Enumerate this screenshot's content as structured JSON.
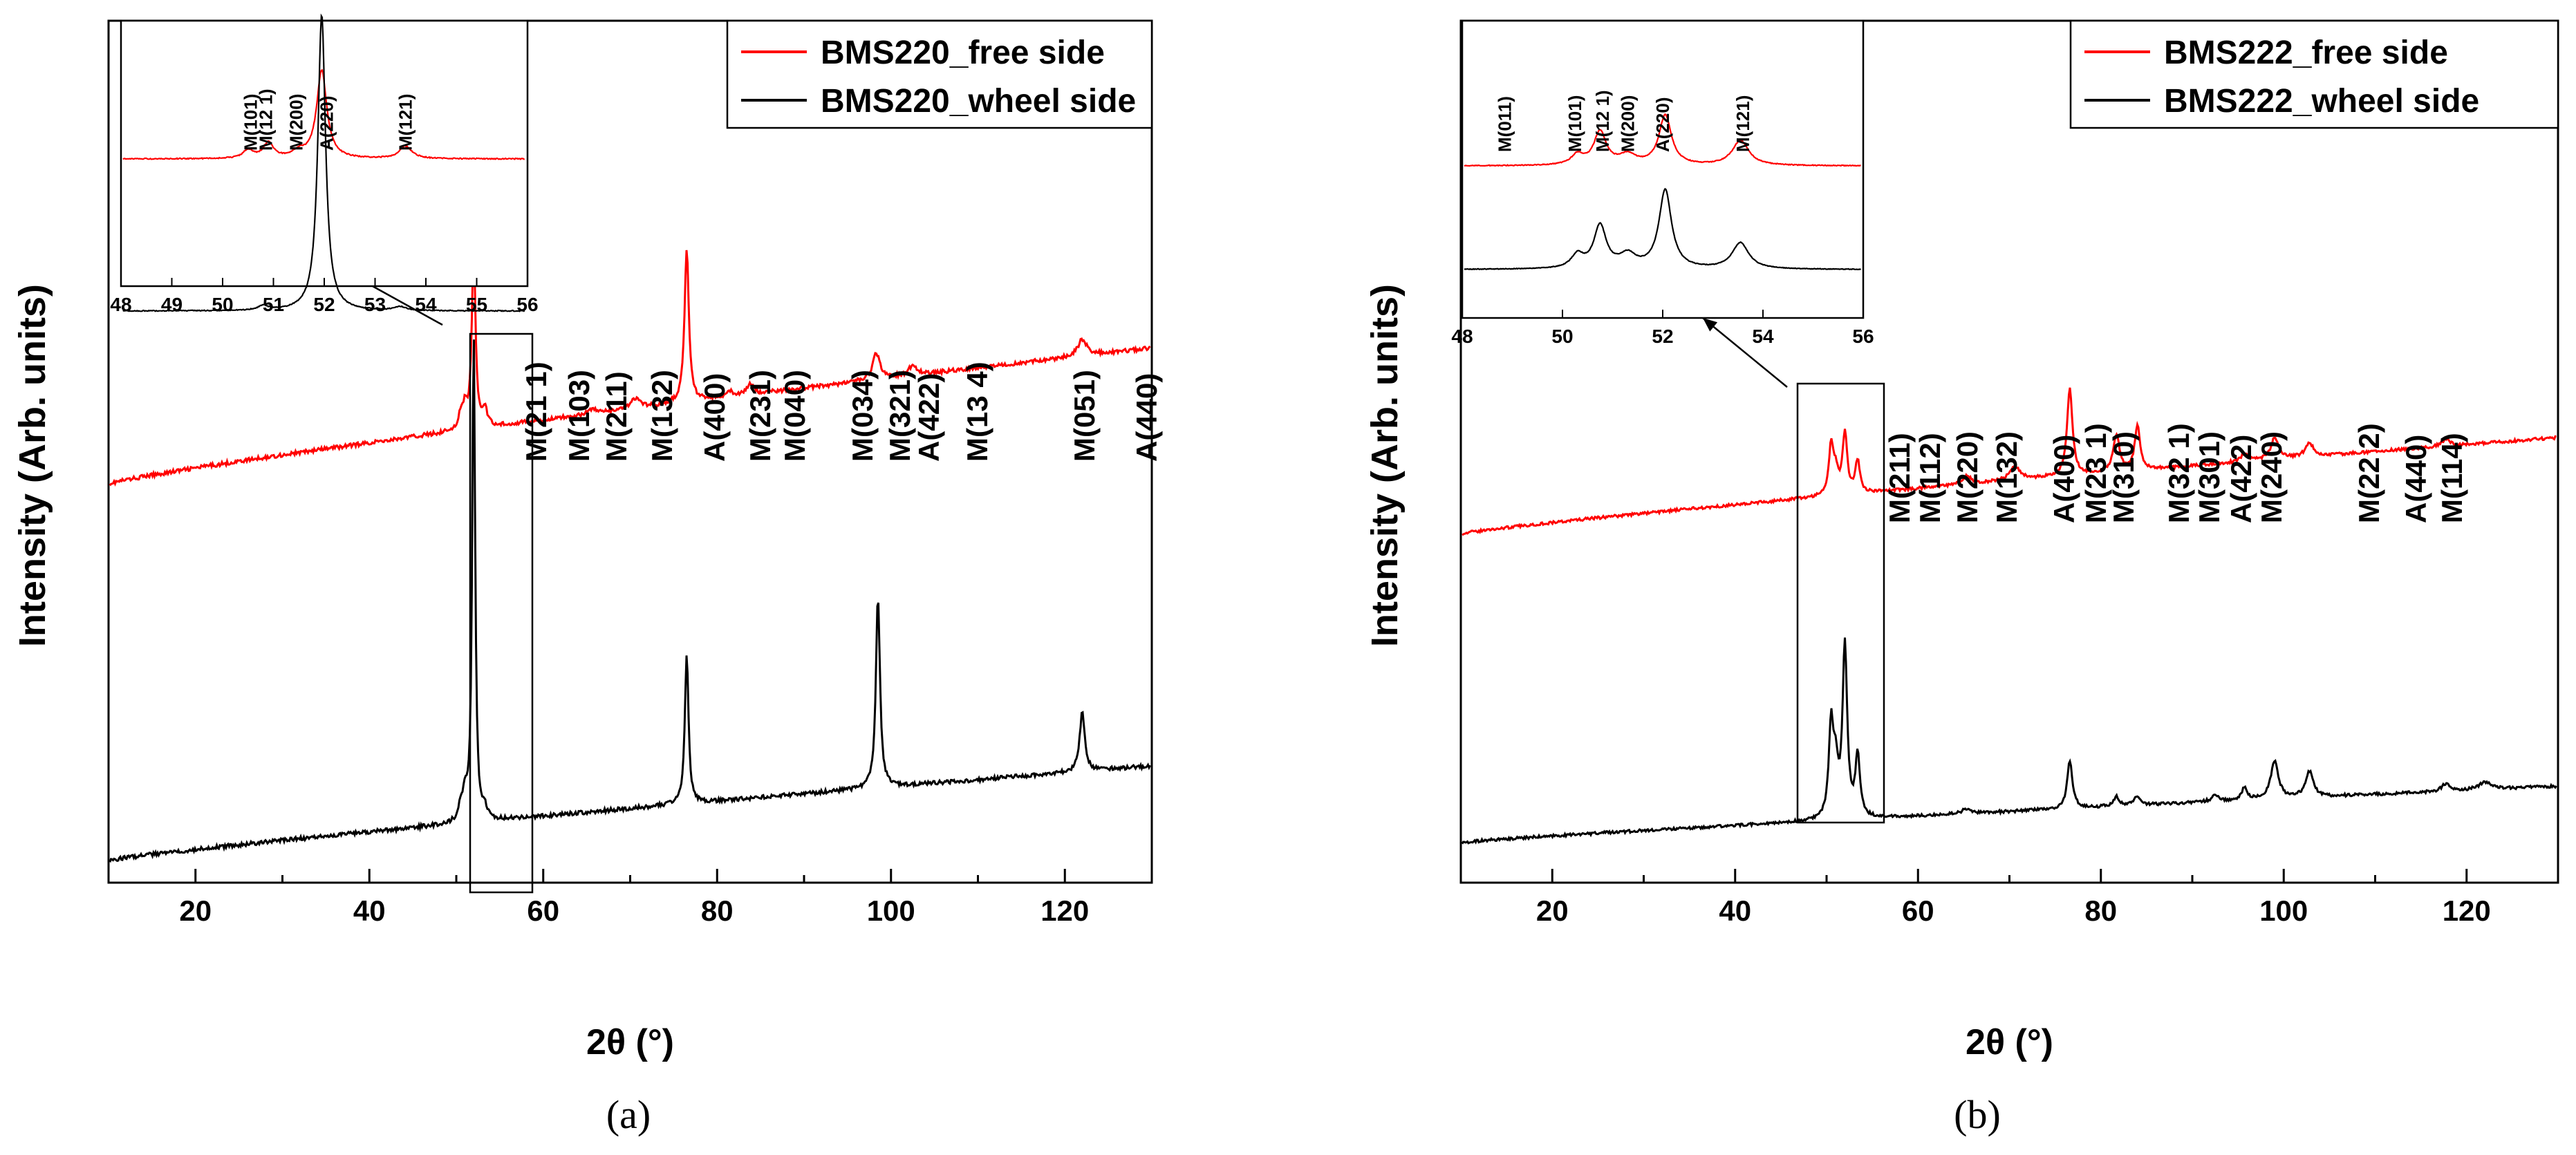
{
  "chart_data": [
    {
      "type": "line",
      "panel_label": "(a)",
      "xlabel": "2θ (°)",
      "ylabel": "Intensity (Arb. units)",
      "xlim": [
        10,
        130
      ],
      "xticks": [
        20,
        40,
        60,
        80,
        100,
        120
      ],
      "legend": "top-right",
      "series": [
        {
          "name": "BMS220_free side",
          "color": "#ff0000",
          "start": 0.16,
          "end": 0.57,
          "peaks": [
            [
              50.5,
              0.04,
              0.3
            ],
            [
              51.0,
              0.06,
              0.3
            ],
            [
              52.0,
              0.55,
              0.25
            ],
            [
              53.3,
              0.05,
              0.3
            ],
            [
              65.7,
              0.015,
              0.6
            ],
            [
              70.6,
              0.03,
              0.6
            ],
            [
              76.5,
              0.46,
              0.3
            ],
            [
              81.4,
              0.02,
              0.4
            ],
            [
              83.8,
              0.035,
              0.4
            ],
            [
              98.3,
              0.08,
              0.5
            ],
            [
              102.5,
              0.03,
              0.6
            ],
            [
              122.0,
              0.05,
              0.6
            ]
          ]
        },
        {
          "name": "BMS220_wheel side",
          "color": "#000000",
          "start": 0.0,
          "end": 0.285,
          "peaks": [
            [
              50.5,
              0.04,
              0.3
            ],
            [
              51.0,
              0.07,
              0.3
            ],
            [
              52.0,
              1.48,
              0.2
            ],
            [
              53.3,
              0.03,
              0.3
            ],
            [
              76.5,
              0.45,
              0.25
            ],
            [
              98.5,
              0.58,
              0.28
            ],
            [
              122.0,
              0.18,
              0.35
            ]
          ]
        }
      ],
      "annotations": [
        "M(21 1)",
        "M(103)",
        "M(211)",
        "M(132)",
        "A(400)",
        "M(231)",
        "M(040)",
        "M(034)",
        "M(321)",
        "A(422)",
        "M(13 4)",
        "M(051)",
        "A(440)"
      ],
      "inset": {
        "xlim": [
          48,
          56
        ],
        "xticks": [
          48,
          49,
          50,
          51,
          52,
          53,
          54,
          55,
          56
        ],
        "labels": [
          "M(101)",
          "M(12 1)",
          "M(200)",
          "A(220)",
          "M(121)"
        ]
      }
    },
    {
      "type": "line",
      "panel_label": "(b)",
      "xlabel": "2θ (°)",
      "ylabel": "Intensity (Arb. units)",
      "xlim": [
        10,
        130
      ],
      "xticks": [
        20,
        40,
        60,
        80,
        100,
        120
      ],
      "legend": "top-right",
      "series": [
        {
          "name": "BMS222_free side",
          "color": "#ff0000",
          "start": 0.19,
          "end": 0.6,
          "peaks": [
            [
              50.5,
              0.21,
              0.3
            ],
            [
              51.0,
              0.09,
              0.3
            ],
            [
              52.0,
              0.26,
              0.3
            ],
            [
              53.4,
              0.14,
              0.3
            ],
            [
              65.3,
              0.035,
              0.6
            ],
            [
              70.6,
              0.06,
              0.7
            ],
            [
              76.6,
              0.37,
              0.35
            ],
            [
              81.7,
              0.16,
              0.4
            ],
            [
              84.0,
              0.19,
              0.35
            ],
            [
              95.7,
              0.03,
              0.5
            ],
            [
              99.0,
              0.09,
              0.5
            ],
            [
              102.8,
              0.06,
              0.5
            ],
            [
              117.7,
              0.03,
              0.5
            ]
          ]
        },
        {
          "name": "BMS222_wheel side",
          "color": "#000000",
          "start": 0.0,
          "end": 0.24,
          "peaks": [
            [
              50.5,
              0.39,
              0.3
            ],
            [
              51.0,
              0.19,
              0.3
            ],
            [
              52.0,
              0.73,
              0.3
            ],
            [
              53.4,
              0.26,
              0.3
            ],
            [
              65.3,
              0.02,
              0.6
            ],
            [
              76.6,
              0.2,
              0.35
            ],
            [
              81.7,
              0.04,
              0.4
            ],
            [
              84.0,
              0.04,
              0.4
            ],
            [
              92.5,
              0.025,
              0.5
            ],
            [
              95.7,
              0.05,
              0.4
            ],
            [
              99.0,
              0.16,
              0.5
            ],
            [
              102.8,
              0.11,
              0.5
            ],
            [
              117.7,
              0.03,
              0.5
            ],
            [
              122.0,
              0.03,
              0.8
            ]
          ]
        }
      ],
      "annotations": [
        "M(211)",
        "M(112)",
        "M(220)",
        "M(132)",
        "A(400)",
        "M(23 1)",
        "M(310)",
        "M(32 1)",
        "M(301)",
        "A(422)",
        "M(240)",
        "M(22 2)",
        "A(440)",
        "M(114)"
      ],
      "inset": {
        "xlim": [
          48,
          56
        ],
        "xticks": [
          48,
          50,
          52,
          54,
          56
        ],
        "labels": [
          "M(011)",
          "M(101)",
          "M(12 1)",
          "M(200)",
          "A(220)",
          "M(121)"
        ]
      }
    }
  ]
}
